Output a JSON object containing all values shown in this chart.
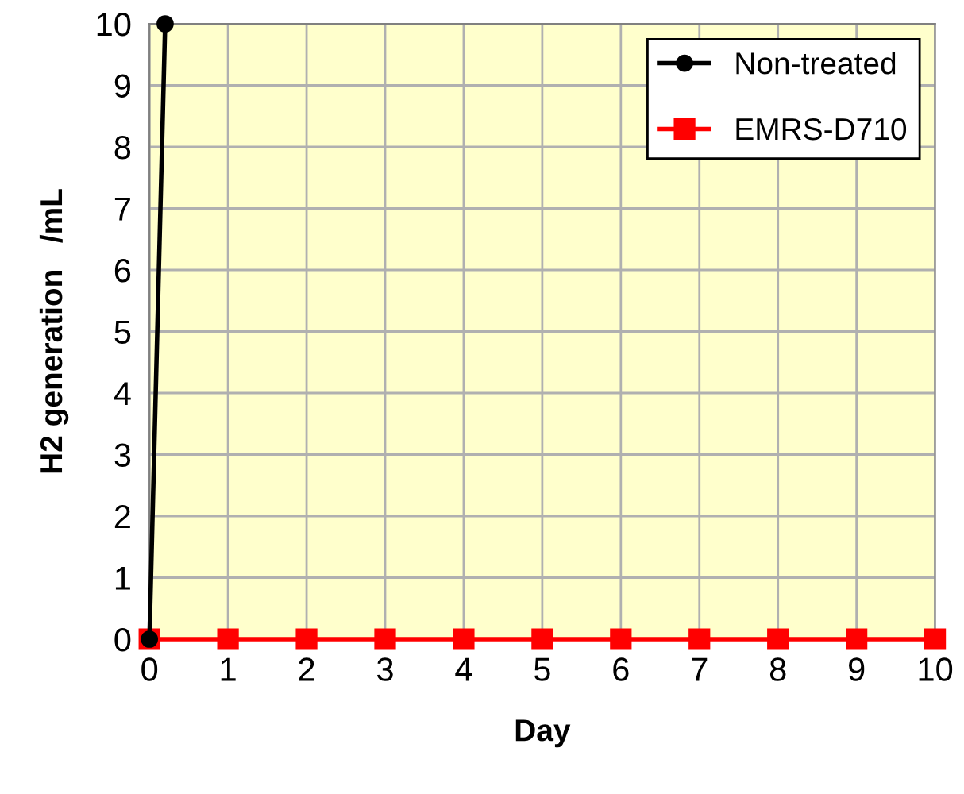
{
  "chart_data": {
    "type": "line",
    "xlabel": "Day",
    "ylabel": "H2 generation   /mL",
    "xlim": [
      0,
      10
    ],
    "ylim": [
      0,
      10
    ],
    "xticks": [
      0,
      1,
      2,
      3,
      4,
      5,
      6,
      7,
      8,
      9,
      10
    ],
    "yticks": [
      0,
      1,
      2,
      3,
      4,
      5,
      6,
      7,
      8,
      9,
      10
    ],
    "grid": true,
    "legend": "top right",
    "series": [
      {
        "name": "Non-treated",
        "color": "#000000",
        "marker": "circle",
        "x": [
          0,
          0.2
        ],
        "values": [
          0,
          10
        ]
      },
      {
        "name": "EMRS-D710",
        "color": "#ff0000",
        "marker": "square",
        "x": [
          0,
          1,
          2,
          3,
          4,
          5,
          6,
          7,
          8,
          9,
          10
        ],
        "values": [
          0,
          0,
          0,
          0,
          0,
          0,
          0,
          0,
          0,
          0,
          0
        ]
      }
    ]
  }
}
